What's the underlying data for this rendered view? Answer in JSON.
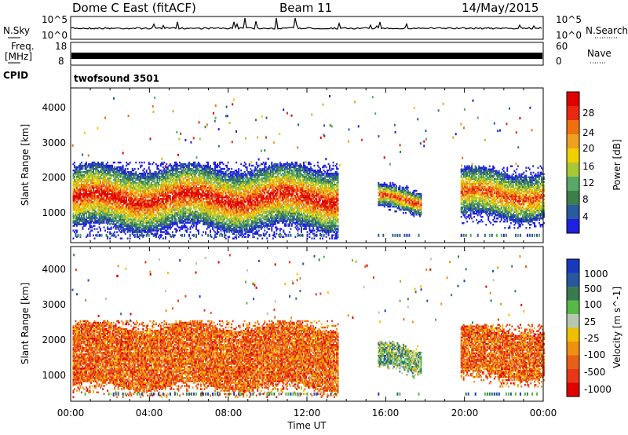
{
  "header": {
    "radar": "Dome C East (fitACF)",
    "beam": "Beam 11",
    "date": "14/May/2015"
  },
  "top_panels": {
    "nsky_label": "N.Sky",
    "nsky_ticks": [
      "10^5",
      "10^0"
    ],
    "nsearch_label": "N.Search",
    "nsearch_ticks": [
      "10^5",
      "10^0"
    ],
    "freq_label": "Freq.",
    "freq_unit": "[MHz]",
    "freq_ticks": [
      "18",
      "8"
    ],
    "nave_label": "Nave",
    "nave_ticks": [
      "60",
      "0"
    ],
    "cpid_label": "CPID",
    "cpid_value": "twofsound 3501"
  },
  "colors": {
    "power_scale": [
      "#2020e0",
      "#2a5aa0",
      "#3d7f4a",
      "#58a868",
      "#a8c838",
      "#f0d000",
      "#f0a020",
      "#f07010",
      "#e82810",
      "#e00000"
    ],
    "velocity_scale": [
      "#1838c0",
      "#2a56a0",
      "#3a7a50",
      "#58b848",
      "#b8c8b0",
      "#f0c000",
      "#f09010",
      "#e86018",
      "#e83818",
      "#e00000"
    ]
  },
  "chart_data": [
    {
      "type": "heatmap",
      "panel": "power",
      "ylabel": "Slant Range [km]",
      "ylim": [
        200,
        4600
      ],
      "yticks": [
        "1000",
        "2000",
        "3000",
        "4000"
      ],
      "xlabel": "Time UT",
      "xlim": [
        0,
        24
      ],
      "xticks": [
        "00:00",
        "04:00",
        "08:00",
        "12:00",
        "16:00",
        "20:00",
        "00:00"
      ],
      "colorbar_label": "Power [dB]",
      "colorbar_ticks": [
        "4",
        "8",
        "12",
        "16",
        "20",
        "24",
        "28"
      ],
      "echo_regions": [
        {
          "t0": 0.1,
          "t1": 13.6,
          "r0": 600,
          "r1": 2300,
          "peak_dB": 30
        },
        {
          "t0": 15.6,
          "t1": 17.8,
          "r0": 1100,
          "r1": 1700,
          "peak_dB": 28
        },
        {
          "t0": 19.8,
          "t1": 24.0,
          "r0": 900,
          "r1": 2200,
          "peak_dB": 26
        }
      ]
    },
    {
      "type": "heatmap",
      "panel": "velocity",
      "ylabel": "Slant Range [km]",
      "ylim": [
        200,
        4600
      ],
      "yticks": [
        "1000",
        "2000",
        "3000",
        "4000"
      ],
      "xlabel": "Time UT",
      "xlim": [
        0,
        24
      ],
      "xticks": [
        "00:00",
        "04:00",
        "08:00",
        "12:00",
        "16:00",
        "20:00",
        "00:00"
      ],
      "colorbar_label": "Velocity [m s^-1]",
      "colorbar_ticks": [
        "1000",
        "500",
        "100",
        "25",
        "-25",
        "-100",
        "-500",
        "-1000"
      ],
      "echo_regions": [
        {
          "t0": 0.1,
          "t1": 13.6,
          "r0": 600,
          "r1": 2300,
          "typical_velocity": -300
        },
        {
          "t0": 15.6,
          "t1": 17.8,
          "r0": 1100,
          "r1": 1700,
          "typical_velocity": 100
        },
        {
          "t0": 19.8,
          "t1": 24.0,
          "r0": 900,
          "r1": 2200,
          "typical_velocity": -200
        }
      ]
    }
  ]
}
